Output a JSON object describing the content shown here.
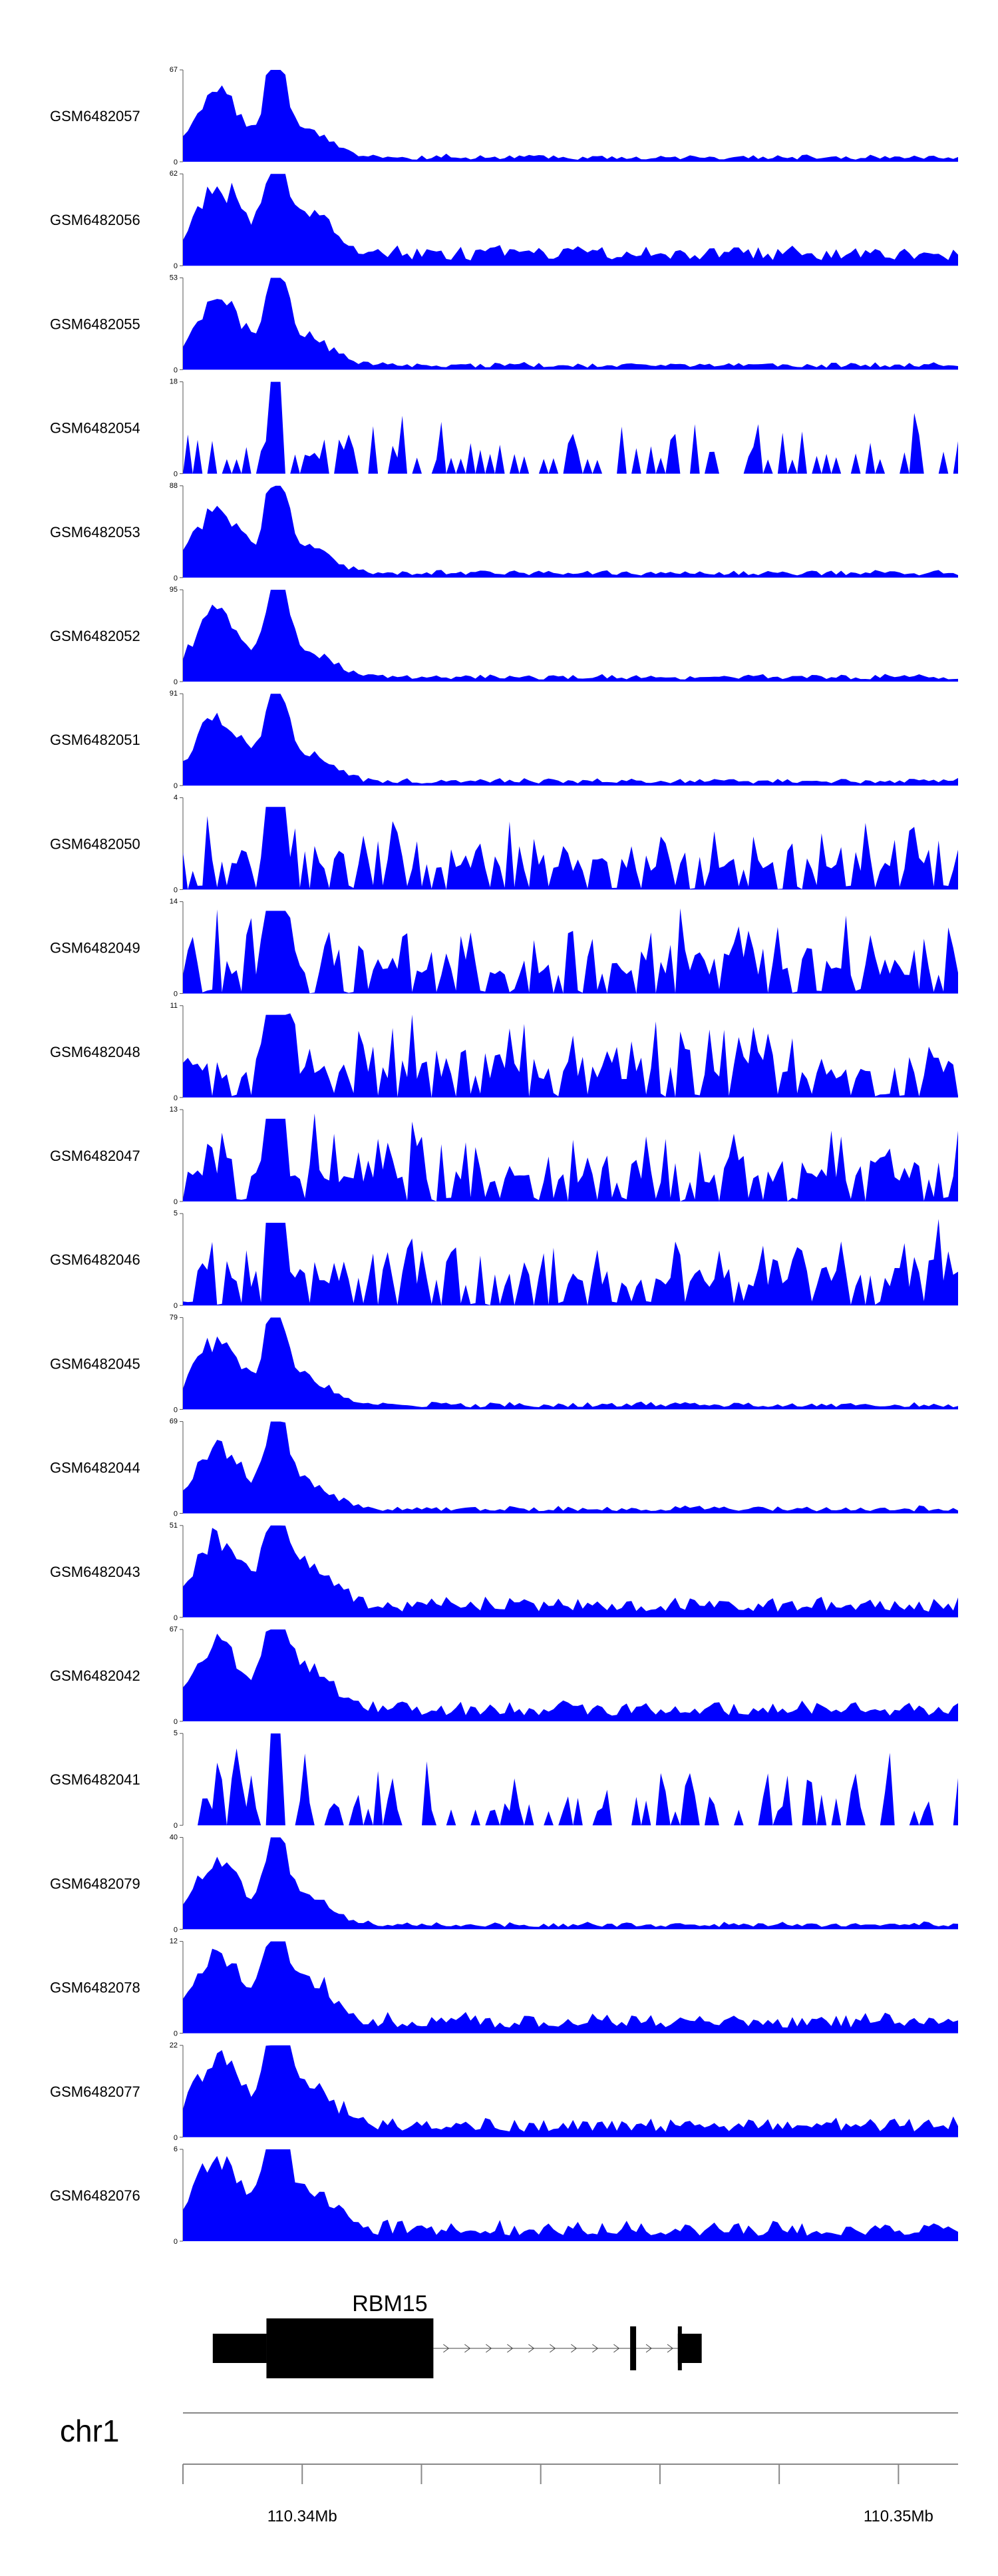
{
  "chart_data": {
    "type": "area",
    "title": "",
    "chromosome": "chr1",
    "x_unit": "Mb",
    "xlim": [
      110.3377,
      110.3507
    ],
    "x_ticks": [
      110.3377,
      110.3397,
      110.3417,
      110.3437,
      110.3457,
      110.3477,
      110.3497
    ],
    "x_tick_labels": [
      {
        "value": 110.3397,
        "label": "110.34Mb"
      },
      {
        "value": 110.3497,
        "label": "110.35Mb"
      }
    ],
    "fill_color": "#0000ff",
    "tracks": [
      {
        "name": "GSM6482057",
        "ymax": 67,
        "profile": "sharp"
      },
      {
        "name": "GSM6482056",
        "ymax": 62,
        "profile": "broad"
      },
      {
        "name": "GSM6482055",
        "ymax": 53,
        "profile": "sharp"
      },
      {
        "name": "GSM6482054",
        "ymax": 18,
        "profile": "sparse"
      },
      {
        "name": "GSM6482053",
        "ymax": 88,
        "profile": "sharp"
      },
      {
        "name": "GSM6482052",
        "ymax": 95,
        "profile": "sharp"
      },
      {
        "name": "GSM6482051",
        "ymax": 91,
        "profile": "sharp"
      },
      {
        "name": "GSM6482050",
        "ymax": 4,
        "profile": "noisy"
      },
      {
        "name": "GSM6482049",
        "ymax": 14,
        "profile": "noisy"
      },
      {
        "name": "GSM6482048",
        "ymax": 11,
        "profile": "noisy"
      },
      {
        "name": "GSM6482047",
        "ymax": 13,
        "profile": "noisy"
      },
      {
        "name": "GSM6482046",
        "ymax": 5,
        "profile": "noisy"
      },
      {
        "name": "GSM6482045",
        "ymax": 79,
        "profile": "sharp"
      },
      {
        "name": "GSM6482044",
        "ymax": 69,
        "profile": "sharp"
      },
      {
        "name": "GSM6482043",
        "ymax": 51,
        "profile": "broad"
      },
      {
        "name": "GSM6482042",
        "ymax": 67,
        "profile": "broad"
      },
      {
        "name": "GSM6482041",
        "ymax": 5,
        "profile": "sparse"
      },
      {
        "name": "GSM6482079",
        "ymax": 40,
        "profile": "sharp"
      },
      {
        "name": "GSM6482078",
        "ymax": 12,
        "profile": "broad"
      },
      {
        "name": "GSM6482077",
        "ymax": 22,
        "profile": "broad"
      },
      {
        "name": "GSM6482076",
        "ymax": 6,
        "profile": "broad"
      }
    ],
    "ymin_label": "0",
    "gene": {
      "name": "RBM15",
      "strand": "+",
      "utr5": [
        110.3382,
        110.3391
      ],
      "cds": [
        110.3391,
        110.3419
      ],
      "introns": [
        [
          110.3419,
          110.3452
        ],
        [
          110.3453,
          110.346
        ]
      ],
      "exons": [
        [
          110.3452,
          110.3453
        ],
        [
          110.346,
          110.346
        ],
        [
          110.346,
          110.3464
        ]
      ]
    }
  }
}
